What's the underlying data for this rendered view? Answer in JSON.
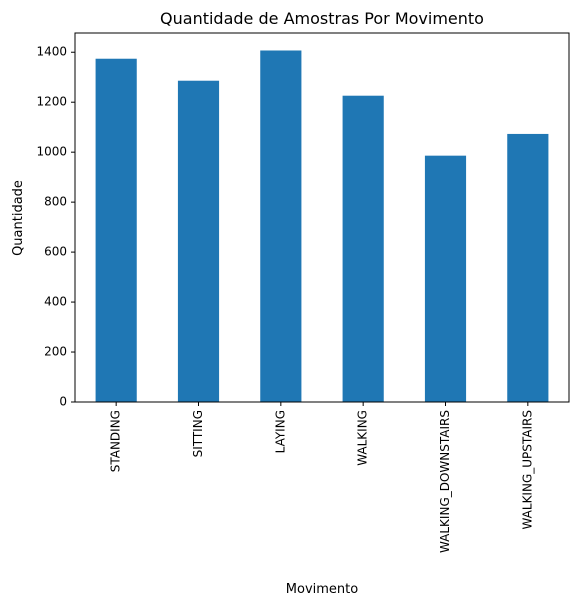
{
  "chart_data": {
    "type": "bar",
    "title": "Quantidade de Amostras Por Movimento",
    "xlabel": "Movimento",
    "ylabel": "Quantidade",
    "categories": [
      "STANDING",
      "SITTING",
      "LAYING",
      "WALKING",
      "WALKING_DOWNSTAIRS",
      "WALKING_UPSTAIRS"
    ],
    "values": [
      1374,
      1286,
      1407,
      1226,
      986,
      1073
    ],
    "yticks": [
      "0",
      "200",
      "400",
      "600",
      "800",
      "1000",
      "1200",
      "1400"
    ],
    "ylim": [
      0,
      1477
    ],
    "grid": false,
    "legend": "none",
    "bar_color": "#1f77b4"
  }
}
